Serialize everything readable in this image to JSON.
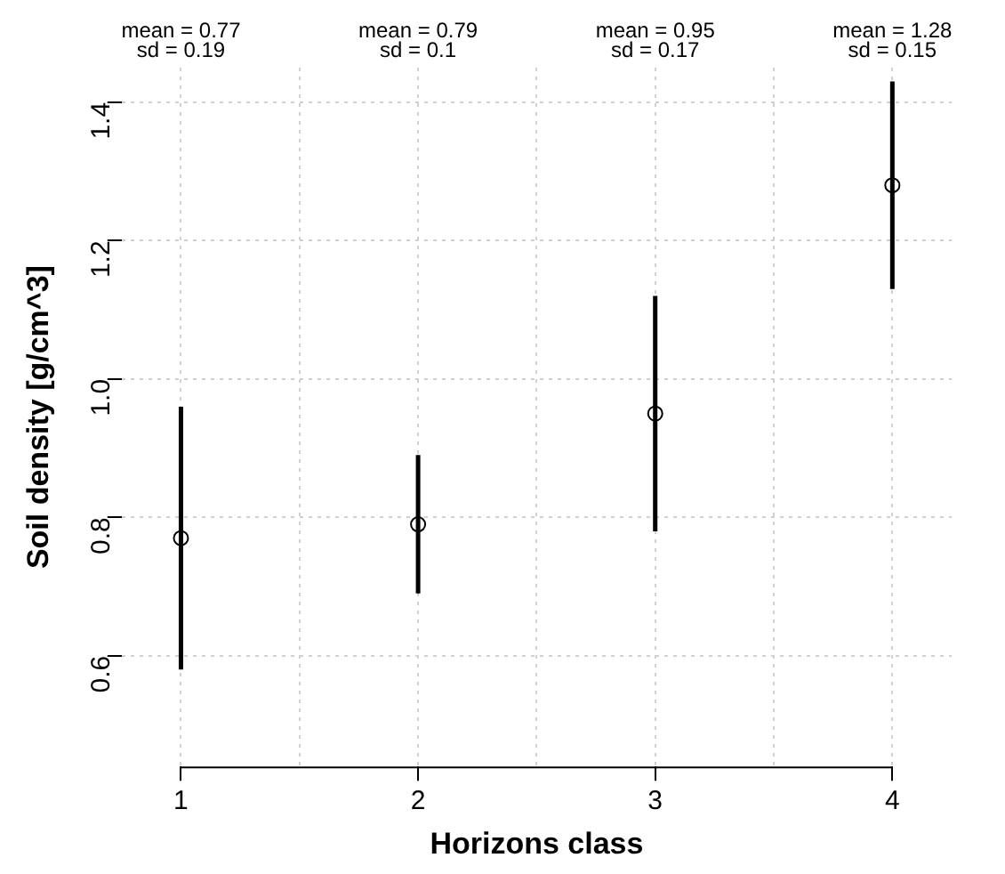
{
  "chart_data": {
    "type": "scatter",
    "xlabel": "Horizons class",
    "ylabel": "Soil density [g/cm^3]",
    "x": [
      1,
      2,
      3,
      4
    ],
    "series": [
      {
        "color": "#000000",
        "values": [
          0.77,
          0.79,
          0.95,
          1.28
        ],
        "errors": [
          0.19,
          0.1,
          0.17,
          0.15
        ]
      }
    ],
    "xlim": [
      0.75,
      4.25
    ],
    "ylim": [
      0.44,
      1.45
    ],
    "xticks": [
      1,
      {
        "value": 1.5,
        "label": null
      },
      2,
      {
        "value": 2.5,
        "label": null
      },
      3,
      {
        "value": 3.5,
        "label": null
      },
      4
    ],
    "yticks": [
      0.6,
      0.8,
      {
        "value": 1,
        "label": "1.0"
      },
      1.2,
      1.4
    ],
    "grid": true,
    "marker": "circle",
    "legend": false,
    "annotations": [
      "mean = 0.77",
      "sd = 0.19",
      "mean = 0.79",
      "sd = 0.1",
      "mean = 0.95",
      "sd = 0.17",
      "mean = 1.28",
      "sd = 0.15"
    ]
  }
}
